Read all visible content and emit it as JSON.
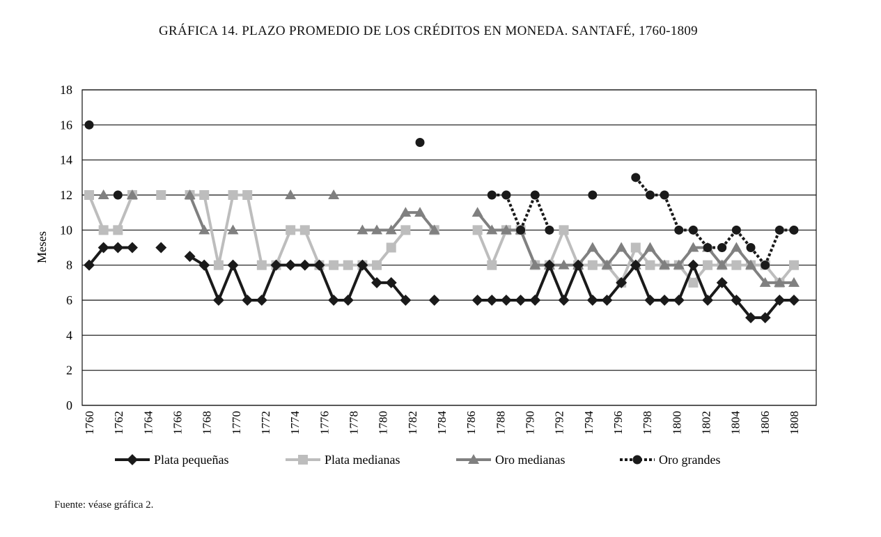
{
  "title": "GRÁFICA 14. PLAZO PROMEDIO DE LOS CRÉDITOS EN MONEDA. SANTAFÉ, 1760-1809",
  "footnote": "Fuente: véase gráfica 2.",
  "chart_data": {
    "type": "line",
    "title": "GRÁFICA 14. PLAZO PROMEDIO DE LOS CRÉDITOS EN MONEDA. SANTAFÉ, 1760-1809",
    "xlabel": "",
    "ylabel": "Meses",
    "ylim": [
      0,
      18
    ],
    "yticks": [
      0,
      2,
      4,
      6,
      8,
      10,
      12,
      14,
      16,
      18
    ],
    "xticks": [
      "1760",
      "1762",
      "1764",
      "1766",
      "1768",
      "1770",
      "1772",
      "1774",
      "1776",
      "1778",
      "1780",
      "1782",
      "1784",
      "1786",
      "1788",
      "1790",
      "1792",
      "1794",
      "1796",
      "1798",
      "1800",
      "1802",
      "1804",
      "1806",
      "1808"
    ],
    "x_start": 1760,
    "x_end": 1809,
    "grid": true,
    "legend": "bottom",
    "series": [
      {
        "name": "Plata pequeñas",
        "color": "#1a1a1a",
        "marker": "diamond",
        "dash": false,
        "values": {
          "1760": 8,
          "1761": 9,
          "1762": 9,
          "1763": 9,
          "1765": 9,
          "1767": 8.5,
          "1768": 8,
          "1769": 6,
          "1770": 8,
          "1771": 6,
          "1772": 6,
          "1773": 8,
          "1774": 8,
          "1775": 8,
          "1776": 8,
          "1777": 6,
          "1778": 6,
          "1779": 8,
          "1780": 7,
          "1781": 7,
          "1782": 6,
          "1784": 6,
          "1787": 6,
          "1788": 6,
          "1789": 6,
          "1790": 6,
          "1791": 6,
          "1792": 8,
          "1793": 6,
          "1794": 8,
          "1795": 6,
          "1796": 6,
          "1797": 7,
          "1798": 8,
          "1799": 6,
          "1800": 6,
          "1801": 6,
          "1802": 8,
          "1803": 6,
          "1804": 7,
          "1805": 6,
          "1806": 5,
          "1807": 5,
          "1808": 6,
          "1809": 6
        }
      },
      {
        "name": "Plata medianas",
        "color": "#bdbdbd",
        "marker": "square",
        "dash": false,
        "values": {
          "1760": 12,
          "1761": 10,
          "1762": 10,
          "1763": 12,
          "1765": 12,
          "1767": 12,
          "1768": 12,
          "1769": 8,
          "1770": 12,
          "1771": 12,
          "1772": 8,
          "1773": 8,
          "1774": 10,
          "1775": 10,
          "1776": 8,
          "1777": 8,
          "1778": 8,
          "1779": 8,
          "1780": 8,
          "1781": 9,
          "1782": 10,
          "1784": 10,
          "1787": 10,
          "1788": 8,
          "1789": 10,
          "1790": 10,
          "1791": 8,
          "1792": 8,
          "1793": 10,
          "1794": 8,
          "1795": 8,
          "1796": 8,
          "1797": 7,
          "1798": 9,
          "1799": 8,
          "1800": 8,
          "1801": 8,
          "1802": 7,
          "1803": 8,
          "1804": 8,
          "1805": 8,
          "1806": 8,
          "1807": 8,
          "1808": 7,
          "1809": 8
        }
      },
      {
        "name": "Oro medianas",
        "color": "#808080",
        "marker": "triangle",
        "dash": false,
        "values": {
          "1761": 12,
          "1763": 12,
          "1767": 12,
          "1768": 10,
          "1770": 10,
          "1774": 12,
          "1777": 12,
          "1779": 10,
          "1780": 10,
          "1781": 10,
          "1782": 11,
          "1783": 11,
          "1784": 10,
          "1787": 11,
          "1788": 10,
          "1789": 10,
          "1790": 10,
          "1791": 8,
          "1792": 8,
          "1793": 8,
          "1794": 8,
          "1795": 9,
          "1796": 8,
          "1797": 9,
          "1798": 8,
          "1799": 9,
          "1800": 8,
          "1801": 8,
          "1802": 9,
          "1803": 9,
          "1804": 8,
          "1805": 9,
          "1806": 8,
          "1807": 7,
          "1808": 7,
          "1809": 7
        }
      },
      {
        "name": "Oro grandes",
        "color": "#1a1a1a",
        "marker": "circle",
        "dash": true,
        "values": {
          "1760": 16,
          "1762": 12,
          "1783": 15,
          "1788": 12,
          "1789": 12,
          "1790": 10,
          "1791": 12,
          "1792": 10,
          "1795": 12,
          "1798": 13,
          "1799": 12,
          "1800": 12,
          "1801": 10,
          "1802": 10,
          "1803": 9,
          "1804": 9,
          "1805": 10,
          "1806": 9,
          "1807": 8,
          "1808": 10,
          "1809": 10
        }
      }
    ]
  }
}
